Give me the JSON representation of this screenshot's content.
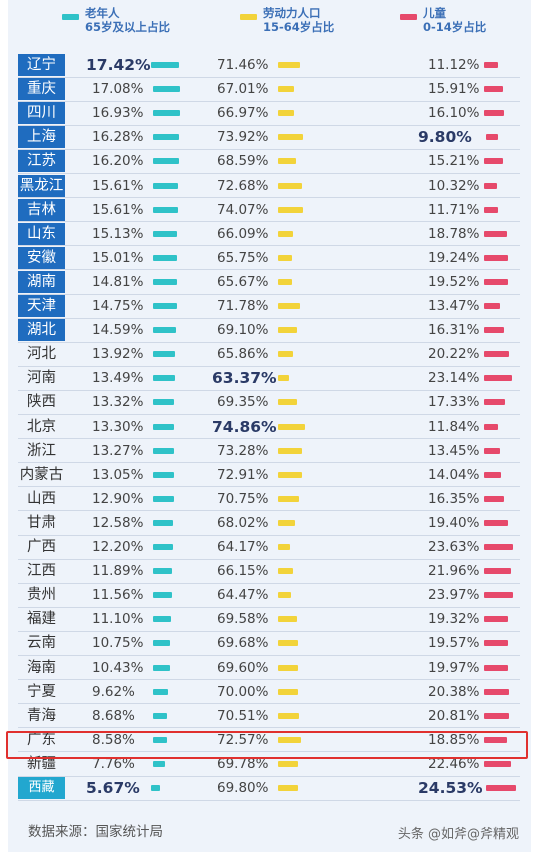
{
  "legend": [
    {
      "line1": "老年人",
      "line2": "65岁及以上占比",
      "color": "#2fc2c8"
    },
    {
      "line1": "劳动力人口",
      "line2": "15-64岁占比",
      "color": "#f2d33a"
    },
    {
      "line1": "儿童",
      "line2": "0-14岁占比",
      "color": "#e6496b"
    }
  ],
  "colors": {
    "elderly": "#2fc2c8",
    "labor": "#f2d33a",
    "children": "#e6496b",
    "highlight": "#e0302e"
  },
  "highlighted_region": "广东",
  "source": "数据来源：国家统计局",
  "watermark": "头条 @如斧@斧精观",
  "chart_data": {
    "type": "table",
    "title": "",
    "columns": [
      "老年人 65岁及以上占比",
      "劳动力人口 15-64岁占比",
      "儿童 0-14岁占比"
    ],
    "rows": [
      {
        "region": "辽宁",
        "elderly": "17.42%",
        "labor": "71.46%",
        "children": "11.12%",
        "e": 17.42,
        "l": 71.46,
        "c": 11.12,
        "style": "dark",
        "bold": "e"
      },
      {
        "region": "重庆",
        "elderly": "17.08%",
        "labor": "67.01%",
        "children": "15.91%",
        "e": 17.08,
        "l": 67.01,
        "c": 15.91,
        "style": "dark"
      },
      {
        "region": "四川",
        "elderly": "16.93%",
        "labor": "66.97%",
        "children": "16.10%",
        "e": 16.93,
        "l": 66.97,
        "c": 16.1,
        "style": "dark"
      },
      {
        "region": "上海",
        "elderly": "16.28%",
        "labor": "73.92%",
        "children": "9.80%",
        "e": 16.28,
        "l": 73.92,
        "c": 9.8,
        "style": "dark",
        "bold": "c"
      },
      {
        "region": "江苏",
        "elderly": "16.20%",
        "labor": "68.59%",
        "children": "15.21%",
        "e": 16.2,
        "l": 68.59,
        "c": 15.21,
        "style": "dark"
      },
      {
        "region": "黑龙江",
        "elderly": "15.61%",
        "labor": "72.68%",
        "children": "10.32%",
        "e": 15.61,
        "l": 72.68,
        "c": 10.32,
        "style": "dark"
      },
      {
        "region": "吉林",
        "elderly": "15.61%",
        "labor": "74.07%",
        "children": "11.71%",
        "e": 15.61,
        "l": 74.07,
        "c": 11.71,
        "style": "dark"
      },
      {
        "region": "山东",
        "elderly": "15.13%",
        "labor": "66.09%",
        "children": "18.78%",
        "e": 15.13,
        "l": 66.09,
        "c": 18.78,
        "style": "dark"
      },
      {
        "region": "安徽",
        "elderly": "15.01%",
        "labor": "65.75%",
        "children": "19.24%",
        "e": 15.01,
        "l": 65.75,
        "c": 19.24,
        "style": "dark"
      },
      {
        "region": "湖南",
        "elderly": "14.81%",
        "labor": "65.67%",
        "children": "19.52%",
        "e": 14.81,
        "l": 65.67,
        "c": 19.52,
        "style": "dark"
      },
      {
        "region": "天津",
        "elderly": "14.75%",
        "labor": "71.78%",
        "children": "13.47%",
        "e": 14.75,
        "l": 71.78,
        "c": 13.47,
        "style": "dark"
      },
      {
        "region": "湖北",
        "elderly": "14.59%",
        "labor": "69.10%",
        "children": "16.31%",
        "e": 14.59,
        "l": 69.1,
        "c": 16.31,
        "style": "dark"
      },
      {
        "region": "河北",
        "elderly": "13.92%",
        "labor": "65.86%",
        "children": "20.22%",
        "e": 13.92,
        "l": 65.86,
        "c": 20.22,
        "style": "light"
      },
      {
        "region": "河南",
        "elderly": "13.49%",
        "labor": "63.37%",
        "children": "23.14%",
        "e": 13.49,
        "l": 63.37,
        "c": 23.14,
        "style": "light",
        "bold": "l"
      },
      {
        "region": "陕西",
        "elderly": "13.32%",
        "labor": "69.35%",
        "children": "17.33%",
        "e": 13.32,
        "l": 69.35,
        "c": 17.33,
        "style": "light"
      },
      {
        "region": "北京",
        "elderly": "13.30%",
        "labor": "74.86%",
        "children": "11.84%",
        "e": 13.3,
        "l": 74.86,
        "c": 11.84,
        "style": "light",
        "bold": "l"
      },
      {
        "region": "浙江",
        "elderly": "13.27%",
        "labor": "73.28%",
        "children": "13.45%",
        "e": 13.27,
        "l": 73.28,
        "c": 13.45,
        "style": "light"
      },
      {
        "region": "内蒙古",
        "elderly": "13.05%",
        "labor": "72.91%",
        "children": "14.04%",
        "e": 13.05,
        "l": 72.91,
        "c": 14.04,
        "style": "light"
      },
      {
        "region": "山西",
        "elderly": "12.90%",
        "labor": "70.75%",
        "children": "16.35%",
        "e": 12.9,
        "l": 70.75,
        "c": 16.35,
        "style": "light"
      },
      {
        "region": "甘肃",
        "elderly": "12.58%",
        "labor": "68.02%",
        "children": "19.40%",
        "e": 12.58,
        "l": 68.02,
        "c": 19.4,
        "style": "light"
      },
      {
        "region": "广西",
        "elderly": "12.20%",
        "labor": "64.17%",
        "children": "23.63%",
        "e": 12.2,
        "l": 64.17,
        "c": 23.63,
        "style": "light"
      },
      {
        "region": "江西",
        "elderly": "11.89%",
        "labor": "66.15%",
        "children": "21.96%",
        "e": 11.89,
        "l": 66.15,
        "c": 21.96,
        "style": "light"
      },
      {
        "region": "贵州",
        "elderly": "11.56%",
        "labor": "64.47%",
        "children": "23.97%",
        "e": 11.56,
        "l": 64.47,
        "c": 23.97,
        "style": "light"
      },
      {
        "region": "福建",
        "elderly": "11.10%",
        "labor": "69.58%",
        "children": "19.32%",
        "e": 11.1,
        "l": 69.58,
        "c": 19.32,
        "style": "light"
      },
      {
        "region": "云南",
        "elderly": "10.75%",
        "labor": "69.68%",
        "children": "19.57%",
        "e": 10.75,
        "l": 69.68,
        "c": 19.57,
        "style": "light"
      },
      {
        "region": "海南",
        "elderly": "10.43%",
        "labor": "69.60%",
        "children": "19.97%",
        "e": 10.43,
        "l": 69.6,
        "c": 19.97,
        "style": "light"
      },
      {
        "region": "宁夏",
        "elderly": "9.62%",
        "labor": "70.00%",
        "children": "20.38%",
        "e": 9.62,
        "l": 70.0,
        "c": 20.38,
        "style": "light"
      },
      {
        "region": "青海",
        "elderly": "8.68%",
        "labor": "70.51%",
        "children": "20.81%",
        "e": 8.68,
        "l": 70.51,
        "c": 20.81,
        "style": "light"
      },
      {
        "region": "广东",
        "elderly": "8.58%",
        "labor": "72.57%",
        "children": "18.85%",
        "e": 8.58,
        "l": 72.57,
        "c": 18.85,
        "style": "light"
      },
      {
        "region": "新疆",
        "elderly": "7.76%",
        "labor": "69.78%",
        "children": "22.46%",
        "e": 7.76,
        "l": 69.78,
        "c": 22.46,
        "style": "light"
      },
      {
        "region": "西藏",
        "elderly": "5.67%",
        "labor": "69.80%",
        "children": "24.53%",
        "e": 5.67,
        "l": 69.8,
        "c": 24.53,
        "style": "cyan",
        "bold": "ec"
      }
    ]
  }
}
